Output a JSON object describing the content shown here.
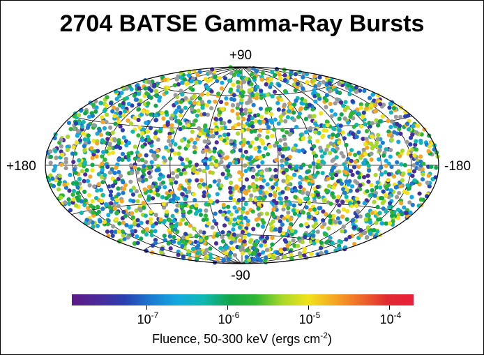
{
  "chart_data": {
    "type": "scatter",
    "title": "2704 BATSE Gamma-Ray Bursts",
    "projection": "Aitoff/Hammer all-sky",
    "coordinate_labels": {
      "top": "+90",
      "bottom": "-90",
      "left": "+180",
      "right": "-180"
    },
    "n_points": 2704,
    "point_colors_note": "colored by fluence",
    "colorbar": {
      "label": "Fluence, 50-300 keV (ergs cm",
      "label_exponent": "-2",
      "label_suffix": ")",
      "scale": "log",
      "range": [
        1.5e-08,
        0.0002
      ],
      "ticks": [
        {
          "base": "10",
          "exponent": "-7",
          "value": 1e-07
        },
        {
          "base": "10",
          "exponent": "-6",
          "value": 1e-06
        },
        {
          "base": "10",
          "exponent": "-5",
          "value": 1e-05
        },
        {
          "base": "10",
          "exponent": "-4",
          "value": 0.0001
        }
      ],
      "colors": [
        "#5b1a86",
        "#4b2a9a",
        "#2a3fb0",
        "#1c7ad0",
        "#14a8e0",
        "#10b8b0",
        "#12a64a",
        "#2fb535",
        "#a8d82a",
        "#f0e21c",
        "#f5a623",
        "#ee6a2a",
        "#e02a30",
        "#ea1f3a"
      ],
      "missing_color": "#9a9a9a"
    }
  }
}
